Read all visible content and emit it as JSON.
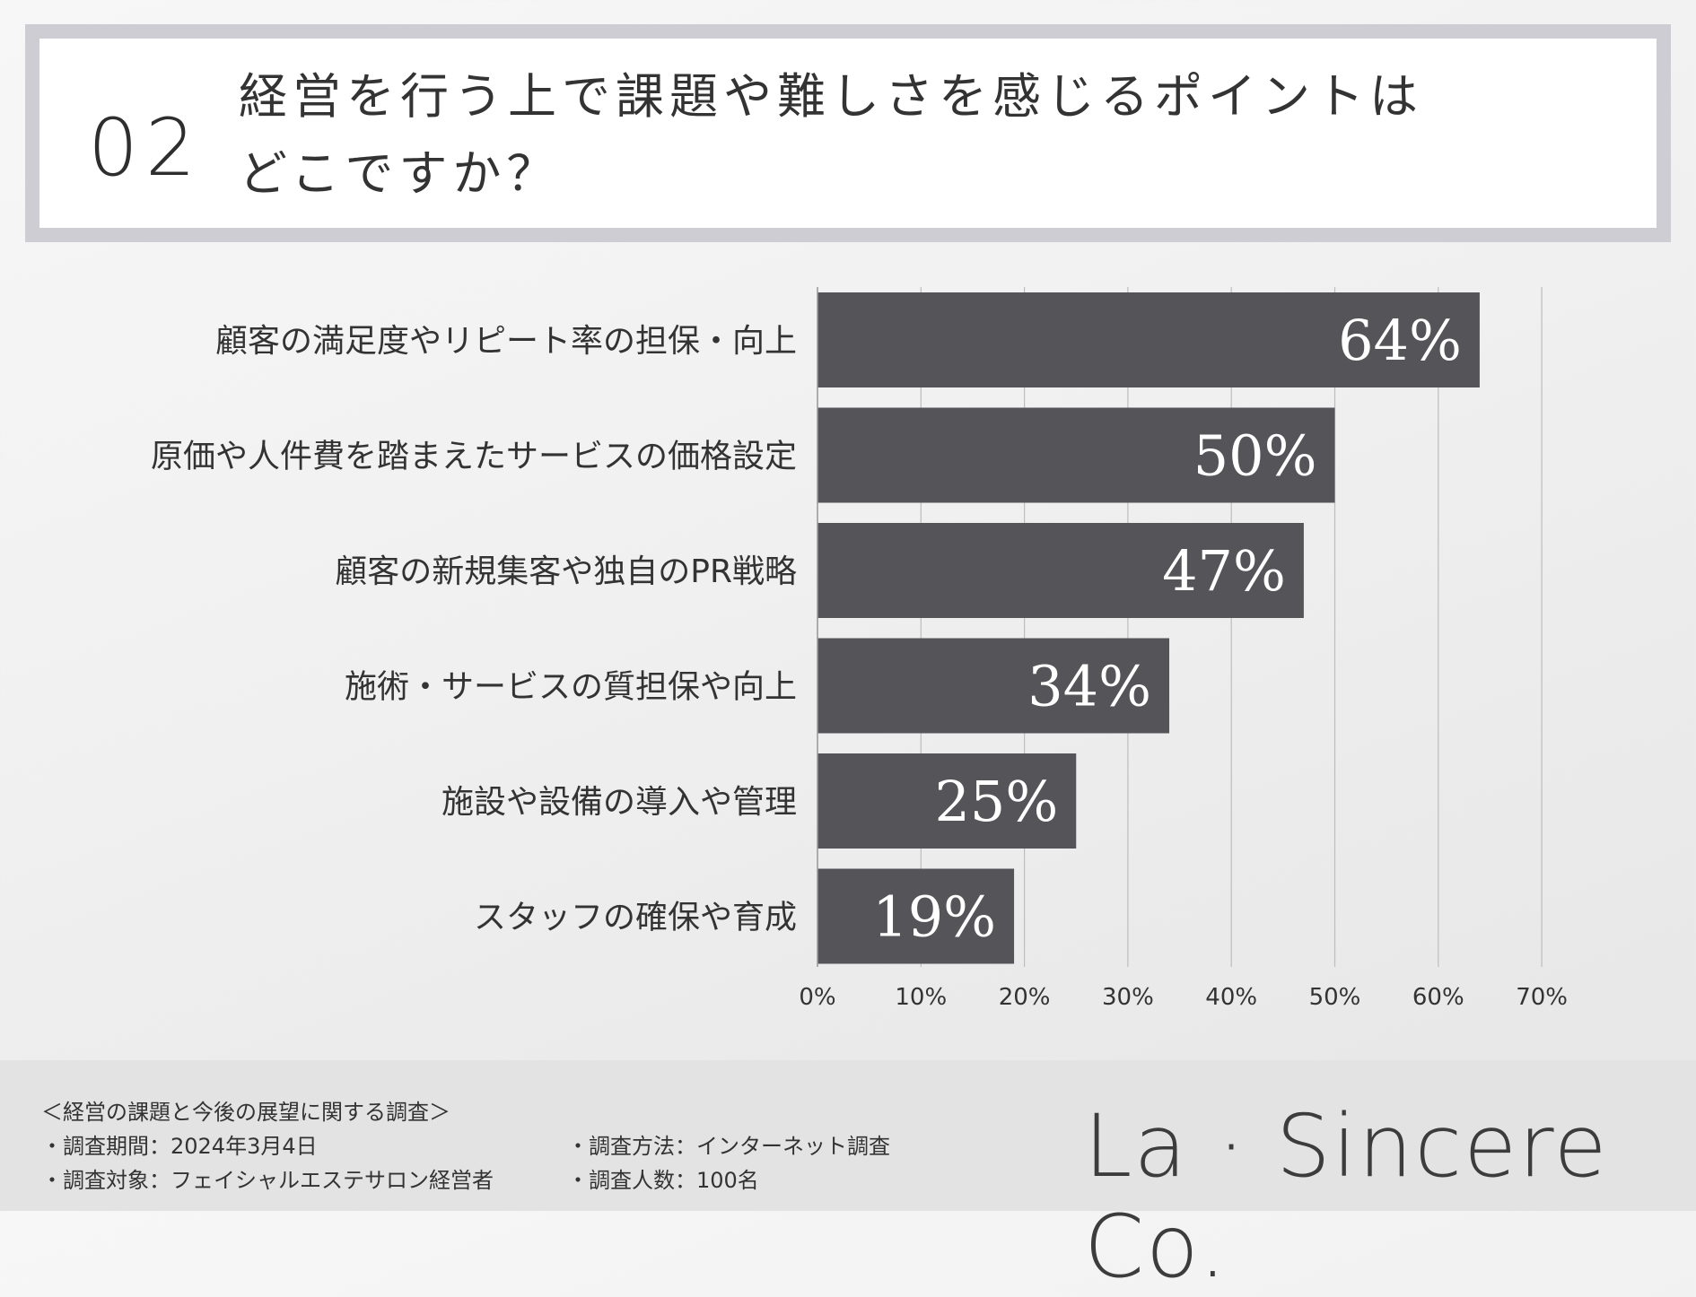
{
  "header": {
    "number": "02",
    "title_line1": "経営を行う上で課題や難しさを感じるポイントは",
    "title_line2": "どこですか？"
  },
  "chart_data": {
    "type": "bar",
    "orientation": "horizontal",
    "categories": [
      "顧客の満足度やリピート率の担保・向上",
      "原価や人件費を踏まえたサービスの価格設定",
      "顧客の新規集客や独自のPR戦略",
      "施術・サービスの質担保や向上",
      "施設や設備の導入や管理",
      "スタッフの確保や育成"
    ],
    "values": [
      64,
      50,
      47,
      34,
      25,
      19
    ],
    "value_labels": [
      "64%",
      "50%",
      "47%",
      "34%",
      "25%",
      "19%"
    ],
    "xlim": [
      0,
      70
    ],
    "ticks": [
      "0%",
      "10%",
      "20%",
      "30%",
      "40%",
      "50%",
      "60%",
      "70%"
    ],
    "grid": "vertical",
    "bar_color": "#555458"
  },
  "footer": {
    "survey_title": "＜経営の課題と今後の展望に関する調査＞",
    "period": "・調査期間：2024年3月4日",
    "target": "・調査対象：フェイシャルエステサロン経営者",
    "method": "・調査方法：インターネット調査",
    "count": "・調査人数：100名",
    "logo": "La · Sincere Co."
  }
}
